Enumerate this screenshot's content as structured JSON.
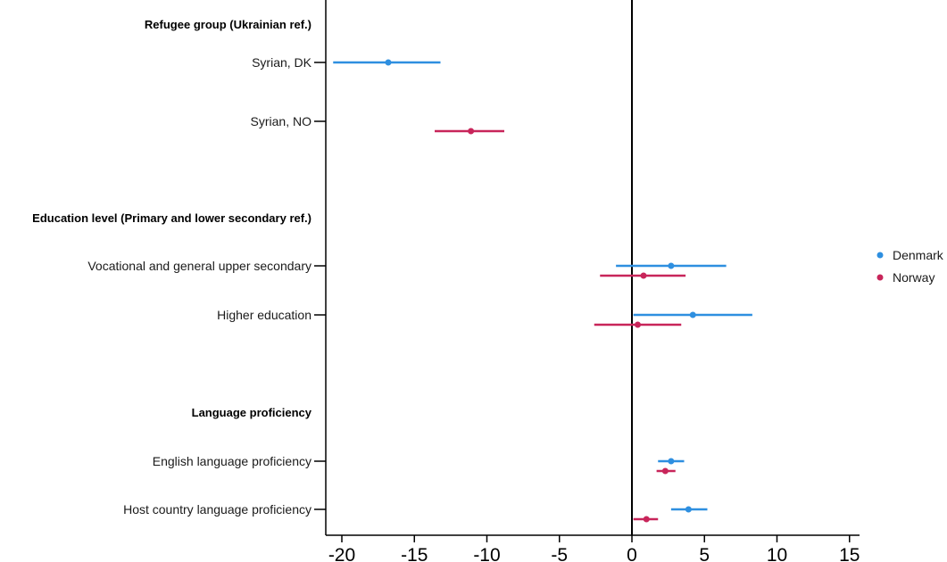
{
  "chart_data": {
    "type": "scatter",
    "xlim": [
      -21,
      16
    ],
    "x_ticks": [
      -20,
      -15,
      -10,
      -5,
      0,
      5,
      10,
      15
    ],
    "x_tick_labels": [
      "-20",
      "-15",
      "-10",
      "-5",
      "0",
      "5",
      "10",
      "15"
    ],
    "reference_line_x": 0,
    "grid": false,
    "legend_position": "right",
    "series": [
      {
        "name": "Denmark",
        "color": "#2E8FE0"
      },
      {
        "name": "Norway",
        "color": "#C8255A"
      }
    ],
    "groups": [
      {
        "label": "Refugee group (Ukrainian ref.)",
        "rows": [
          {
            "label": "Syrian, DK",
            "estimates": [
              {
                "series": "Denmark",
                "estimate": -16.8,
                "lo": -20.6,
                "hi": -13.2
              }
            ]
          },
          {
            "label": "Syrian, NO",
            "estimates": [
              {
                "series": "Norway",
                "estimate": -11.1,
                "lo": -13.6,
                "hi": -8.8
              }
            ]
          }
        ]
      },
      {
        "label": "Education level (Primary and lower secondary ref.)",
        "rows": [
          {
            "label": "Vocational and general upper secondary",
            "estimates": [
              {
                "series": "Denmark",
                "estimate": 2.7,
                "lo": -1.1,
                "hi": 6.5
              },
              {
                "series": "Norway",
                "estimate": 0.8,
                "lo": -2.2,
                "hi": 3.7
              }
            ]
          },
          {
            "label": "Higher education",
            "estimates": [
              {
                "series": "Denmark",
                "estimate": 4.2,
                "lo": 0.1,
                "hi": 8.3
              },
              {
                "series": "Norway",
                "estimate": 0.4,
                "lo": -2.6,
                "hi": 3.4
              }
            ]
          }
        ]
      },
      {
        "label": "Language proficiency",
        "rows": [
          {
            "label": "English language proficiency",
            "estimates": [
              {
                "series": "Denmark",
                "estimate": 2.7,
                "lo": 1.8,
                "hi": 3.6
              },
              {
                "series": "Norway",
                "estimate": 2.3,
                "lo": 1.7,
                "hi": 3.0
              }
            ]
          },
          {
            "label": "Host country language proficiency",
            "estimates": [
              {
                "series": "Denmark",
                "estimate": 3.9,
                "lo": 2.7,
                "hi": 5.2
              },
              {
                "series": "Norway",
                "estimate": 1.0,
                "lo": 0.1,
                "hi": 1.8
              }
            ]
          }
        ]
      }
    ]
  }
}
